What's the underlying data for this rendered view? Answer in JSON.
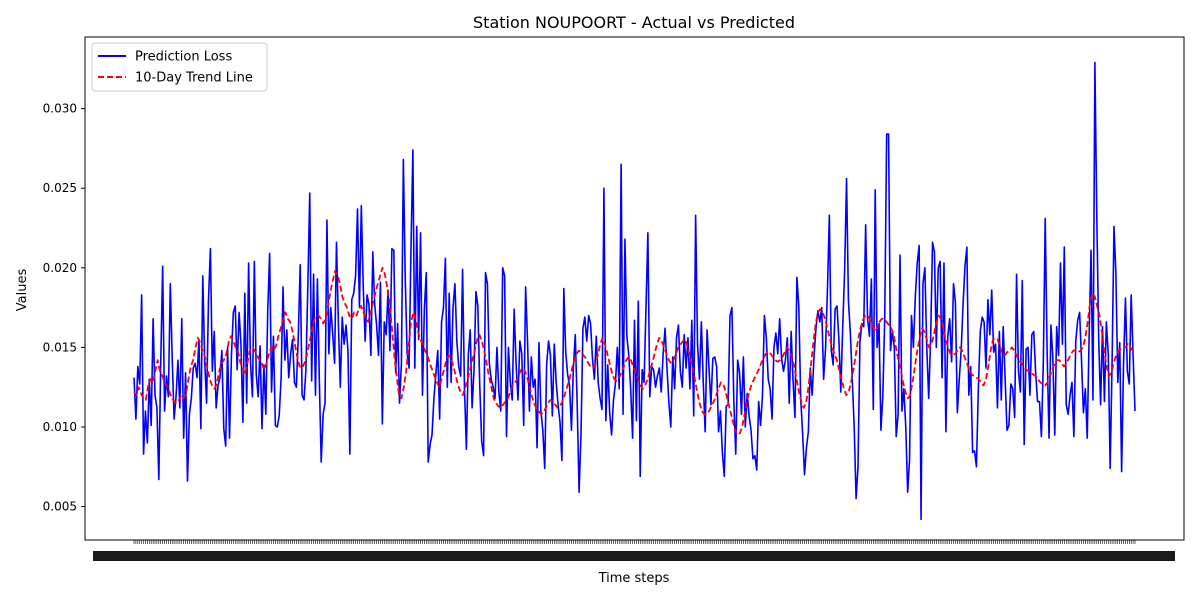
{
  "chart_data": {
    "type": "line",
    "title": "Station NOUPOORT - Actual vs Predicted",
    "xlabel": "Time steps",
    "ylabel": "Values",
    "ylim": [
      0.0029,
      0.0345
    ],
    "yticks": [
      "0.005",
      "0.010",
      "0.015",
      "0.020",
      "0.025",
      "0.030"
    ],
    "ytick_values": [
      0.005,
      0.01,
      0.015,
      0.02,
      0.025,
      0.03
    ],
    "legend_position": "top-left",
    "grid": false,
    "series": [
      {
        "name": "Prediction Loss",
        "color": "#0000ff",
        "style": "solid",
        "values": [
          0.0131,
          0.0105,
          0.0138,
          0.0127,
          0.0183,
          0.0083,
          0.011,
          0.009,
          0.013,
          0.0101,
          0.0168,
          0.012,
          0.0112,
          0.0067,
          0.014,
          0.0201,
          0.011,
          0.0132,
          0.0119,
          0.019,
          0.0143,
          0.0105,
          0.0119,
          0.0142,
          0.0112,
          0.0168,
          0.0093,
          0.0134,
          0.0066,
          0.0108,
          0.0118,
          0.0137,
          0.014,
          0.0131,
          0.0155,
          0.0099,
          0.0195,
          0.0142,
          0.0115,
          0.018,
          0.0212,
          0.0135,
          0.016,
          0.0112,
          0.0126,
          0.0131,
          0.0148,
          0.0099,
          0.0088,
          0.015,
          0.0093,
          0.0145,
          0.0172,
          0.0176,
          0.0136,
          0.0172,
          0.0152,
          0.0103,
          0.0184,
          0.0115,
          0.0203,
          0.014,
          0.0119,
          0.0204,
          0.0133,
          0.0119,
          0.0151,
          0.0099,
          0.0139,
          0.0108,
          0.0173,
          0.0209,
          0.0122,
          0.0157,
          0.0101,
          0.01,
          0.0107,
          0.013,
          0.0188,
          0.0142,
          0.0161,
          0.0131,
          0.0146,
          0.0155,
          0.0128,
          0.0125,
          0.0157,
          0.0202,
          0.012,
          0.0117,
          0.0136,
          0.0189,
          0.0247,
          0.0129,
          0.0196,
          0.012,
          0.0193,
          0.013,
          0.0078,
          0.0108,
          0.0115,
          0.023,
          0.0146,
          0.0175,
          0.0159,
          0.014,
          0.0216,
          0.0165,
          0.0125,
          0.0169,
          0.0152,
          0.0164,
          0.0148,
          0.0083,
          0.018,
          0.0184,
          0.0195,
          0.0237,
          0.0175,
          0.0239,
          0.0188,
          0.0154,
          0.0183,
          0.0177,
          0.0145,
          0.021,
          0.0177,
          0.0164,
          0.0145,
          0.0191,
          0.0102,
          0.0166,
          0.0158,
          0.0186,
          0.0148,
          0.0212,
          0.0211,
          0.0134,
          0.0165,
          0.0115,
          0.014,
          0.0268,
          0.0193,
          0.0146,
          0.0137,
          0.0212,
          0.0274,
          0.0137,
          0.0226,
          0.0155,
          0.0222,
          0.012,
          0.0174,
          0.0197,
          0.0078,
          0.0089,
          0.0095,
          0.0118,
          0.0133,
          0.0148,
          0.0105,
          0.0166,
          0.0175,
          0.0206,
          0.0125,
          0.0184,
          0.0128,
          0.0175,
          0.019,
          0.0154,
          0.0138,
          0.0132,
          0.0199,
          0.0124,
          0.0086,
          0.0145,
          0.0161,
          0.0112,
          0.0136,
          0.0185,
          0.0176,
          0.0126,
          0.0091,
          0.0082,
          0.0197,
          0.019,
          0.014,
          0.013,
          0.0125,
          0.0118,
          0.015,
          0.0122,
          0.011,
          0.02,
          0.0195,
          0.0094,
          0.015,
          0.0128,
          0.0117,
          0.0174,
          0.014,
          0.0117,
          0.0154,
          0.0146,
          0.0101,
          0.0188,
          0.0154,
          0.011,
          0.0144,
          0.0125,
          0.013,
          0.0087,
          0.0153,
          0.011,
          0.0098,
          0.0074,
          0.0139,
          0.0154,
          0.0145,
          0.0107,
          0.0152,
          0.0128,
          0.0114,
          0.0103,
          0.0079,
          0.0187,
          0.0147,
          0.0133,
          0.0126,
          0.0098,
          0.0137,
          0.0158,
          0.0114,
          0.0059,
          0.0096,
          0.0162,
          0.0169,
          0.0154,
          0.017,
          0.0165,
          0.0143,
          0.013,
          0.0157,
          0.0128,
          0.0118,
          0.0111,
          0.025,
          0.0104,
          0.0139,
          0.0109,
          0.0095,
          0.0117,
          0.0127,
          0.015,
          0.0124,
          0.0265,
          0.0108,
          0.0218,
          0.0157,
          0.0145,
          0.0124,
          0.0093,
          0.0167,
          0.0104,
          0.0179,
          0.0069,
          0.0136,
          0.0128,
          0.0174,
          0.0222,
          0.0119,
          0.0138,
          0.0136,
          0.0125,
          0.0132,
          0.0137,
          0.0122,
          0.0146,
          0.0162,
          0.0137,
          0.0115,
          0.01,
          0.0144,
          0.0124,
          0.0156,
          0.0164,
          0.0135,
          0.0125,
          0.0158,
          0.0137,
          0.0156,
          0.0124,
          0.0167,
          0.0107,
          0.0233,
          0.0152,
          0.013,
          0.0166,
          0.0128,
          0.0097,
          0.0161,
          0.0137,
          0.0114,
          0.0143,
          0.0144,
          0.0138,
          0.0097,
          0.011,
          0.0084,
          0.0069,
          0.0113,
          0.0114,
          0.017,
          0.0175,
          0.0116,
          0.0083,
          0.0142,
          0.0134,
          0.0108,
          0.0144,
          0.01,
          0.0121,
          0.0107,
          0.0098,
          0.008,
          0.0082,
          0.0073,
          0.0116,
          0.0101,
          0.012,
          0.017,
          0.0156,
          0.013,
          0.0124,
          0.0105,
          0.015,
          0.0159,
          0.0146,
          0.0168,
          0.0143,
          0.0135,
          0.0142,
          0.0156,
          0.0115,
          0.016,
          0.0129,
          0.0106,
          0.0194,
          0.0176,
          0.0118,
          0.0096,
          0.007,
          0.0087,
          0.0097,
          0.0137,
          0.012,
          0.0145,
          0.0162,
          0.0173,
          0.0166,
          0.0175,
          0.013,
          0.0149,
          0.0186,
          0.0233,
          0.0148,
          0.0139,
          0.0174,
          0.0176,
          0.0155,
          0.0122,
          0.0163,
          0.0198,
          0.0256,
          0.0179,
          0.0159,
          0.013,
          0.01,
          0.0055,
          0.0075,
          0.0153,
          0.0165,
          0.0163,
          0.0227,
          0.0168,
          0.0157,
          0.0193,
          0.0111,
          0.0249,
          0.015,
          0.0165,
          0.0098,
          0.012,
          0.0169,
          0.0284,
          0.0284,
          0.0148,
          0.016,
          0.015,
          0.0094,
          0.0108,
          0.0208,
          0.011,
          0.0124,
          0.01,
          0.0059,
          0.008,
          0.017,
          0.015,
          0.0182,
          0.0203,
          0.0214,
          0.0042,
          0.019,
          0.02,
          0.015,
          0.0118,
          0.0154,
          0.0216,
          0.021,
          0.015,
          0.02,
          0.0204,
          0.0131,
          0.0203,
          0.0097,
          0.0157,
          0.0168,
          0.0141,
          0.019,
          0.0178,
          0.0109,
          0.013,
          0.0148,
          0.0177,
          0.0201,
          0.0213,
          0.012,
          0.0138,
          0.0084,
          0.0085,
          0.0075,
          0.0124,
          0.016,
          0.0169,
          0.0166,
          0.0137,
          0.018,
          0.0158,
          0.0186,
          0.0147,
          0.0152,
          0.0112,
          0.016,
          0.0117,
          0.0163,
          0.0131,
          0.0098,
          0.0101,
          0.0127,
          0.0124,
          0.0106,
          0.0196,
          0.0135,
          0.0122,
          0.0192,
          0.0089,
          0.0149,
          0.015,
          0.012,
          0.0158,
          0.016,
          0.0134,
          0.0116,
          0.0116,
          0.0094,
          0.014,
          0.0231,
          0.0147,
          0.0093,
          0.0164,
          0.0143,
          0.0095,
          0.0163,
          0.0145,
          0.0203,
          0.0152,
          0.0213,
          0.0114,
          0.0108,
          0.012,
          0.0128,
          0.0094,
          0.0154,
          0.0167,
          0.0172,
          0.0142,
          0.0109,
          0.0124,
          0.0093,
          0.0158,
          0.0211,
          0.0117,
          0.0329,
          0.0233,
          0.0155,
          0.0114,
          0.0163,
          0.0116,
          0.0166,
          0.0146,
          0.0074,
          0.014,
          0.0226,
          0.0196,
          0.0128,
          0.0153,
          0.0072,
          0.014,
          0.0181,
          0.0135,
          0.0127,
          0.0183,
          0.0145,
          0.011
        ]
      },
      {
        "name": "10-Day Trend Line",
        "color": "#ff0000",
        "style": "dashed",
        "values": [
          0.0122,
          0.012,
          0.0125,
          0.0121,
          0.0118,
          0.0117,
          0.0126,
          0.013,
          0.0128,
          0.0135,
          0.0142,
          0.0135,
          0.0132,
          0.0128,
          0.0126,
          0.0122,
          0.0118,
          0.0116,
          0.0115,
          0.0117,
          0.012,
          0.0118,
          0.0121,
          0.013,
          0.0138,
          0.0142,
          0.015,
          0.0156,
          0.0153,
          0.0148,
          0.0144,
          0.0137,
          0.013,
          0.0126,
          0.0124,
          0.0127,
          0.0135,
          0.014,
          0.0142,
          0.0146,
          0.0153,
          0.0157,
          0.0154,
          0.015,
          0.0147,
          0.014,
          0.0137,
          0.0133,
          0.0141,
          0.0148,
          0.015,
          0.0148,
          0.0145,
          0.0142,
          0.014,
          0.0136,
          0.014,
          0.0146,
          0.015,
          0.0148,
          0.0151,
          0.0157,
          0.0162,
          0.0168,
          0.0172,
          0.0168,
          0.0166,
          0.016,
          0.0152,
          0.0144,
          0.0138,
          0.0137,
          0.014,
          0.0145,
          0.0152,
          0.0159,
          0.0167,
          0.017,
          0.017,
          0.0168,
          0.0165,
          0.0168,
          0.0176,
          0.0185,
          0.0192,
          0.0198,
          0.0196,
          0.019,
          0.0182,
          0.0178,
          0.0175,
          0.017,
          0.0168,
          0.0172,
          0.017,
          0.0174,
          0.0176,
          0.0172,
          0.0168,
          0.0166,
          0.0172,
          0.0178,
          0.0184,
          0.019,
          0.0195,
          0.02,
          0.0196,
          0.0188,
          0.0178,
          0.0162,
          0.0145,
          0.0132,
          0.012,
          0.0118,
          0.0125,
          0.0135,
          0.015,
          0.0165,
          0.0172,
          0.0168,
          0.016,
          0.0155,
          0.0152,
          0.0148,
          0.0145,
          0.014,
          0.0136,
          0.0132,
          0.0128,
          0.0125,
          0.013,
          0.0136,
          0.0142,
          0.0145,
          0.0143,
          0.0138,
          0.0132,
          0.0126,
          0.0122,
          0.012,
          0.0125,
          0.013,
          0.0136,
          0.0142,
          0.0148,
          0.0155,
          0.0158,
          0.0154,
          0.0148,
          0.014,
          0.0132,
          0.0125,
          0.0118,
          0.0115,
          0.0113,
          0.0112,
          0.0114,
          0.0116,
          0.0118,
          0.0122,
          0.0126,
          0.0128,
          0.013,
          0.0134,
          0.0137,
          0.0136,
          0.0132,
          0.0126,
          0.012,
          0.0115,
          0.0112,
          0.011,
          0.0108,
          0.0109,
          0.0112,
          0.0115,
          0.0117,
          0.0116,
          0.0114,
          0.0112,
          0.0113,
          0.0116,
          0.012,
          0.0125,
          0.013,
          0.0136,
          0.0142,
          0.0146,
          0.0148,
          0.0147,
          0.0145,
          0.0143,
          0.014,
          0.0138,
          0.0137,
          0.014,
          0.0145,
          0.0152,
          0.0156,
          0.0152,
          0.0146,
          0.014,
          0.0134,
          0.013,
          0.0129,
          0.0131,
          0.0134,
          0.0138,
          0.0142,
          0.0144,
          0.0142,
          0.0138,
          0.0134,
          0.013,
          0.0126,
          0.0124,
          0.0126,
          0.013,
          0.0135,
          0.014,
          0.0146,
          0.0152,
          0.0156,
          0.0154,
          0.015,
          0.0146,
          0.0142,
          0.014,
          0.0142,
          0.0146,
          0.015,
          0.0152,
          0.0154,
          0.0155,
          0.015,
          0.0144,
          0.0138,
          0.013,
          0.0122,
          0.0115,
          0.011,
          0.0108,
          0.0108,
          0.011,
          0.0113,
          0.0116,
          0.012,
          0.0124,
          0.0128,
          0.0127,
          0.0122,
          0.0116,
          0.011,
          0.0104,
          0.0098,
          0.0095,
          0.0096,
          0.01,
          0.0108,
          0.0116,
          0.0122,
          0.0127,
          0.013,
          0.0133,
          0.0136,
          0.014,
          0.0143,
          0.0146,
          0.0147,
          0.0146,
          0.0144,
          0.0142,
          0.0141,
          0.0142,
          0.0144,
          0.0147,
          0.015,
          0.0148,
          0.0144,
          0.0138,
          0.013,
          0.0122,
          0.0116,
          0.0112,
          0.0115,
          0.0125,
          0.0138,
          0.0152,
          0.0164,
          0.0172,
          0.0174,
          0.0172,
          0.0168,
          0.0162,
          0.0156,
          0.015,
          0.0146,
          0.0142,
          0.0136,
          0.013,
          0.0124,
          0.012,
          0.0122,
          0.0128,
          0.0136,
          0.0145,
          0.0155,
          0.0162,
          0.0167,
          0.017,
          0.017,
          0.0168,
          0.0164,
          0.016,
          0.0162,
          0.0166,
          0.0168,
          0.0168,
          0.0166,
          0.0164,
          0.0162,
          0.0158,
          0.015,
          0.0142,
          0.0136,
          0.0128,
          0.0122,
          0.0118,
          0.012,
          0.0128,
          0.0138,
          0.0148,
          0.0156,
          0.0162,
          0.016,
          0.0155,
          0.015,
          0.0152,
          0.0158,
          0.0165,
          0.017,
          0.0168,
          0.0162,
          0.0155,
          0.015,
          0.0146,
          0.0145,
          0.0146,
          0.0148,
          0.015,
          0.0148,
          0.0144,
          0.014,
          0.0136,
          0.0133,
          0.0132,
          0.0131,
          0.013,
          0.0128,
          0.0126,
          0.013,
          0.0138,
          0.0148,
          0.0155,
          0.0156,
          0.0155,
          0.015,
          0.0146,
          0.0145,
          0.0147,
          0.0148,
          0.015,
          0.0148,
          0.0145,
          0.0142,
          0.014,
          0.0138,
          0.0136,
          0.0135,
          0.0134,
          0.0133,
          0.0132,
          0.013,
          0.0128,
          0.0127,
          0.0126,
          0.0128,
          0.0132,
          0.0136,
          0.014,
          0.0142,
          0.0142,
          0.014,
          0.0138,
          0.014,
          0.0143,
          0.0146,
          0.0148,
          0.0148,
          0.0147,
          0.0148,
          0.015,
          0.0156,
          0.0166,
          0.0178,
          0.0184,
          0.0182,
          0.0176,
          0.017,
          0.016,
          0.0148,
          0.0138,
          0.0132,
          0.0134,
          0.014,
          0.0145,
          0.0148,
          0.0149,
          0.015,
          0.015,
          0.0152,
          0.015,
          0.0148,
          0.0147
        ]
      }
    ]
  }
}
